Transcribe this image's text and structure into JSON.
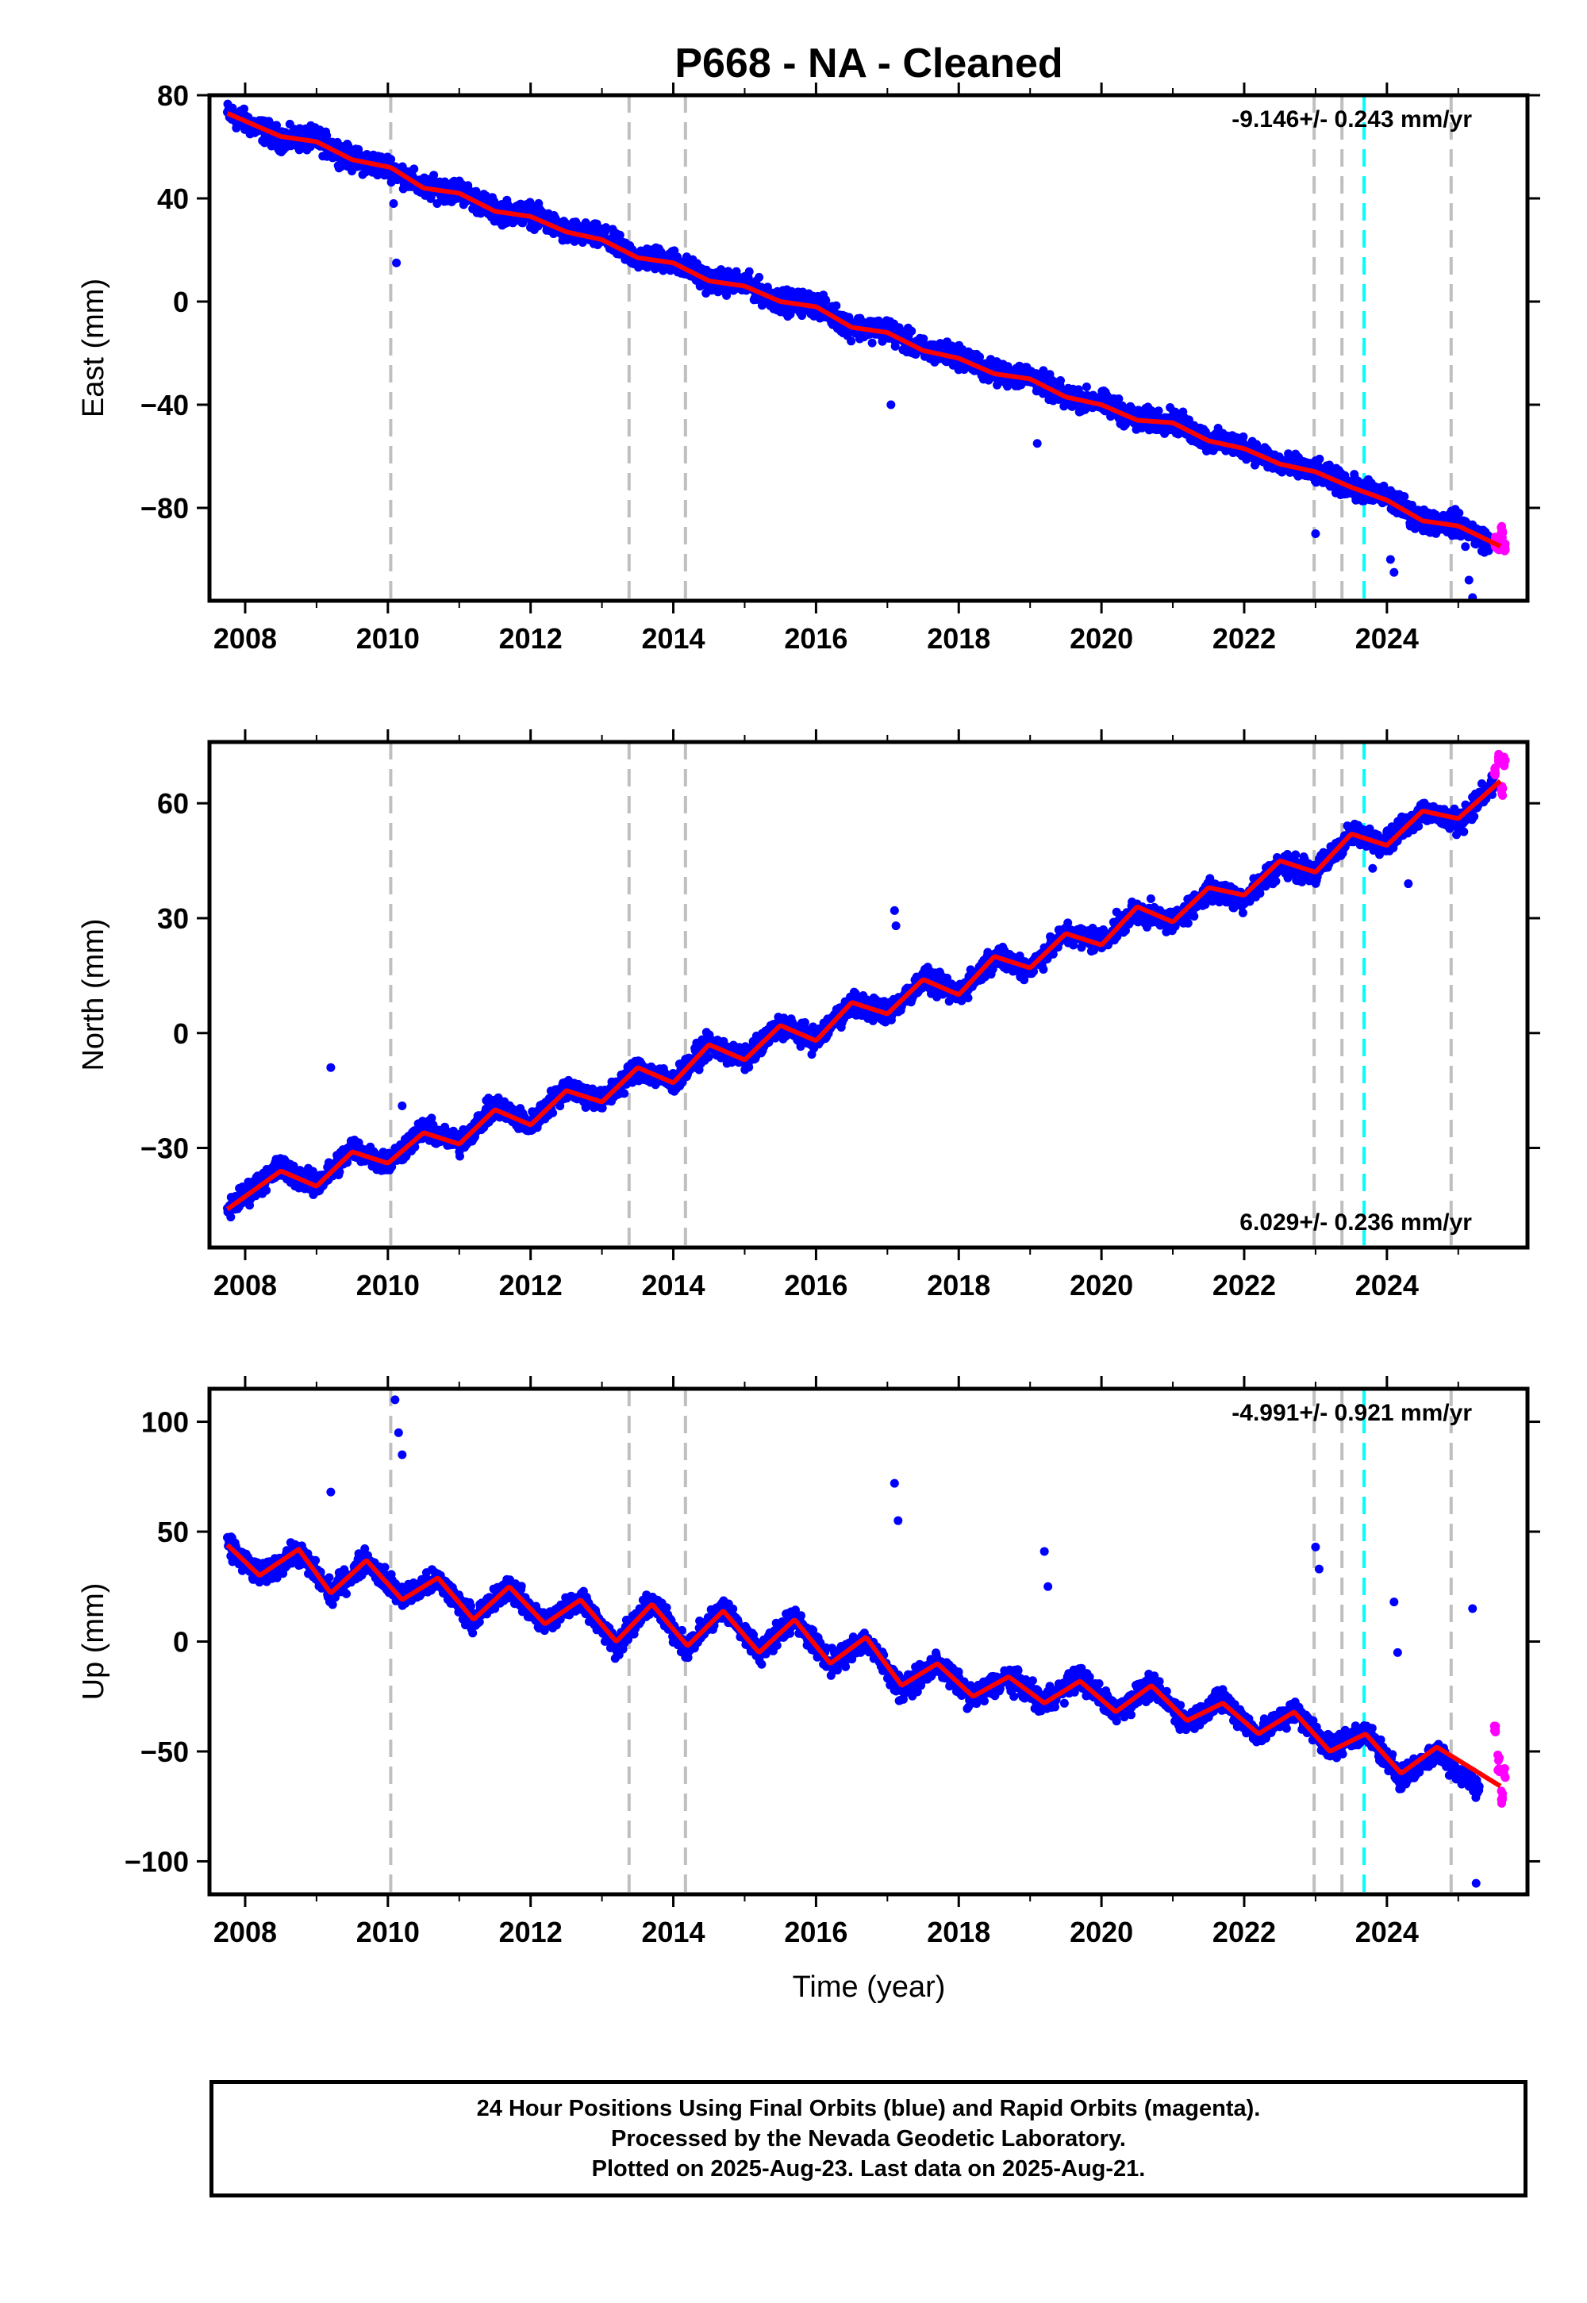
{
  "title": "P668  - NA - Cleaned",
  "xlabel": "Time (year)",
  "x_ticks": [
    "2008",
    "2010",
    "2012",
    "2014",
    "2016",
    "2018",
    "2020",
    "2022",
    "2024"
  ],
  "colors": {
    "final_orbits": "#0000ff",
    "rapid_orbits": "#ff00ff",
    "model_fit": "#ff0000",
    "event_line": "#bfbfbf",
    "equipment_line": "#00ffff"
  },
  "event_lines": [
    2010.04,
    2013.38,
    2014.17,
    2022.98,
    2023.37,
    2024.9
  ],
  "equipment_line": 2023.68,
  "caption": [
    "24 Hour Positions Using Final Orbits (blue) and Rapid Orbits (magenta).",
    "Processed by the Nevada Geodetic Laboratory.",
    "Plotted on 2025-Aug-23. Last data on 2025-Aug-21."
  ],
  "chart_data": [
    {
      "type": "scatter",
      "ylabel": "East (mm)",
      "rate_label": "-9.146+/- 0.243 mm/yr",
      "rate_position": "top-right",
      "xlim": [
        2007.5,
        2025.97
      ],
      "ylim": [
        -116,
        80
      ],
      "y_ticks": [
        80,
        40,
        0,
        -40,
        -80
      ],
      "y_tick_labels": [
        "80",
        "40",
        "0",
        "−40",
        "−80"
      ],
      "series": [
        {
          "name": "Final Orbits (blue)",
          "x": [
            2007.75,
            2008.5,
            2009.0,
            2009.5,
            2010.04,
            2010.5,
            2011.0,
            2011.5,
            2012.0,
            2012.5,
            2013.0,
            2013.5,
            2014.0,
            2014.5,
            2015.0,
            2015.5,
            2016.0,
            2016.5,
            2017.0,
            2017.5,
            2018.0,
            2018.5,
            2019.0,
            2019.5,
            2020.0,
            2020.5,
            2021.0,
            2021.5,
            2022.0,
            2022.5,
            2023.0,
            2023.5,
            2024.0,
            2024.5,
            2025.0,
            2025.45
          ],
          "y": [
            73,
            63,
            63,
            55,
            52,
            44,
            43,
            35,
            34,
            27,
            25,
            17,
            16,
            8,
            7,
            0,
            -1,
            -10,
            -11,
            -19,
            -21,
            -28,
            -29,
            -37,
            -39,
            -46,
            -46,
            -54,
            -56,
            -63,
            -66,
            -72,
            -76,
            -85,
            -86,
            -94
          ]
        },
        {
          "name": "Rapid Orbits (magenta)",
          "x": [
            2025.5,
            2025.55,
            2025.6,
            2025.63
          ],
          "y": [
            -92,
            -95,
            -90,
            -96
          ]
        },
        {
          "name": "Model Fit",
          "x": [
            2007.75,
            2008.5,
            2009.0,
            2009.5,
            2010.04,
            2010.5,
            2011.0,
            2011.5,
            2012.0,
            2012.5,
            2013.0,
            2013.5,
            2014.0,
            2014.5,
            2015.0,
            2015.5,
            2016.0,
            2016.5,
            2017.0,
            2017.5,
            2018.0,
            2018.5,
            2019.0,
            2019.5,
            2020.0,
            2020.5,
            2021.0,
            2021.5,
            2022.0,
            2022.5,
            2023.0,
            2023.5,
            2024.0,
            2024.5,
            2025.0,
            2025.6
          ],
          "y": [
            73,
            64,
            62,
            55,
            52,
            44,
            42,
            35,
            33,
            27,
            24,
            17,
            15,
            8,
            6,
            0,
            -2,
            -10,
            -12,
            -19,
            -22,
            -28,
            -30,
            -37,
            -40,
            -46,
            -47,
            -54,
            -57,
            -63,
            -66,
            -72,
            -77,
            -85,
            -87,
            -95
          ]
        }
      ],
      "outliers": {
        "x": [
          2010.08,
          2010.12,
          2017.05,
          2019.1,
          2023.0,
          2024.05,
          2024.1,
          2025.1,
          2025.15,
          2025.2
        ],
        "y": [
          38,
          15,
          -40,
          -55,
          -90,
          -100,
          -105,
          -95,
          -108,
          -115
        ]
      }
    },
    {
      "type": "scatter",
      "ylabel": "North (mm)",
      "rate_label": "6.029+/- 0.236 mm/yr",
      "rate_position": "bottom-right",
      "xlim": [
        2007.5,
        2025.97
      ],
      "ylim": [
        -56,
        76
      ],
      "y_ticks": [
        60,
        30,
        0,
        -30
      ],
      "y_tick_labels": [
        "60",
        "30",
        "0",
        "−30"
      ],
      "series": [
        {
          "name": "Final Orbits (blue)",
          "x": [
            2007.75,
            2008.5,
            2009.0,
            2009.5,
            2010.0,
            2010.5,
            2011.0,
            2011.5,
            2012.0,
            2012.5,
            2013.0,
            2013.5,
            2014.0,
            2014.5,
            2015.0,
            2015.5,
            2016.0,
            2016.5,
            2017.0,
            2017.5,
            2018.0,
            2018.5,
            2019.0,
            2019.5,
            2020.0,
            2020.5,
            2021.0,
            2021.5,
            2022.0,
            2022.5,
            2023.0,
            2023.5,
            2024.0,
            2024.5,
            2025.0,
            2025.5
          ],
          "y": [
            -46,
            -35,
            -40,
            -30,
            -34,
            -25,
            -29,
            -19,
            -24,
            -14,
            -18,
            -9,
            -13,
            -3,
            -7,
            2,
            -2,
            8,
            5,
            14,
            10,
            20,
            17,
            26,
            24,
            32,
            29,
            37,
            35,
            44,
            42,
            52,
            50,
            58,
            55,
            65
          ]
        },
        {
          "name": "Rapid Orbits (magenta)",
          "x": [
            2025.5,
            2025.55,
            2025.6,
            2025.63
          ],
          "y": [
            68,
            72,
            63,
            70
          ]
        },
        {
          "name": "Model Fit",
          "x": [
            2007.75,
            2008.5,
            2009.0,
            2009.5,
            2010.0,
            2010.5,
            2011.0,
            2011.5,
            2012.0,
            2012.5,
            2013.0,
            2013.5,
            2014.0,
            2014.5,
            2015.0,
            2015.5,
            2016.0,
            2016.5,
            2017.0,
            2017.5,
            2018.0,
            2018.5,
            2019.0,
            2019.5,
            2020.0,
            2020.5,
            2021.0,
            2021.5,
            2022.0,
            2022.5,
            2023.0,
            2023.5,
            2024.0,
            2024.5,
            2025.0,
            2025.6
          ],
          "y": [
            -46,
            -36,
            -40,
            -31,
            -34,
            -26,
            -29,
            -20,
            -24,
            -15,
            -18,
            -9,
            -13,
            -3,
            -7,
            2,
            -2,
            8,
            5,
            14,
            10,
            20,
            17,
            26,
            23,
            33,
            29,
            38,
            36,
            45,
            42,
            52,
            49,
            58,
            56,
            66
          ]
        }
      ],
      "outliers": {
        "x": [
          2009.2,
          2010.2,
          2017.1,
          2017.12,
          2023.8,
          2024.3
        ],
        "y": [
          -9,
          -19,
          32,
          28,
          43,
          39
        ]
      }
    },
    {
      "type": "scatter",
      "ylabel": "Up (mm)",
      "rate_label": "-4.991+/- 0.921 mm/yr",
      "rate_position": "top-right",
      "xlim": [
        2007.5,
        2025.97
      ],
      "ylim": [
        -115,
        115
      ],
      "y_ticks": [
        100,
        50,
        0,
        -50,
        -100
      ],
      "y_tick_labels": [
        "100",
        "50",
        "0",
        "−50",
        "−100"
      ],
      "series": [
        {
          "name": "Final Orbits (blue)",
          "x": [
            2007.75,
            2008.2,
            2008.75,
            2009.2,
            2009.7,
            2010.2,
            2010.7,
            2011.2,
            2011.7,
            2012.2,
            2012.7,
            2013.2,
            2013.7,
            2014.2,
            2014.7,
            2015.2,
            2015.7,
            2016.2,
            2016.7,
            2017.2,
            2017.7,
            2018.2,
            2018.7,
            2019.2,
            2019.7,
            2020.2,
            2020.7,
            2021.2,
            2021.7,
            2022.2,
            2022.7,
            2023.2,
            2023.7,
            2024.2,
            2024.7,
            2025.3
          ],
          "y": [
            44,
            30,
            41,
            22,
            37,
            20,
            28,
            10,
            25,
            8,
            20,
            -2,
            18,
            -3,
            16,
            -5,
            11,
            -10,
            1,
            -22,
            -10,
            -26,
            -16,
            -28,
            -16,
            -32,
            -20,
            -37,
            -26,
            -43,
            -31,
            -48,
            -41,
            -62,
            -50,
            -68
          ]
        },
        {
          "name": "Rapid Orbits (magenta)",
          "x": [
            2025.5,
            2025.55,
            2025.6,
            2025.63
          ],
          "y": [
            -40,
            -55,
            -70,
            -60
          ]
        },
        {
          "name": "Model Fit",
          "x": [
            2007.75,
            2008.2,
            2008.75,
            2009.2,
            2009.7,
            2010.2,
            2010.7,
            2011.2,
            2011.7,
            2012.2,
            2012.7,
            2013.2,
            2013.7,
            2014.2,
            2014.7,
            2015.2,
            2015.7,
            2016.2,
            2016.7,
            2017.2,
            2017.7,
            2018.2,
            2018.7,
            2019.2,
            2019.7,
            2020.2,
            2020.7,
            2021.2,
            2021.7,
            2022.2,
            2022.7,
            2023.2,
            2023.7,
            2024.2,
            2024.7,
            2025.6
          ],
          "y": [
            44,
            30,
            42,
            22,
            37,
            19,
            29,
            10,
            25,
            8,
            19,
            0,
            17,
            -2,
            14,
            -5,
            10,
            -10,
            2,
            -20,
            -10,
            -25,
            -16,
            -28,
            -18,
            -32,
            -20,
            -36,
            -28,
            -42,
            -32,
            -50,
            -42,
            -60,
            -48,
            -66
          ]
        }
      ],
      "outliers": {
        "x": [
          2009.2,
          2010.1,
          2010.15,
          2010.2,
          2017.1,
          2017.15,
          2019.2,
          2019.25,
          2023.0,
          2023.05,
          2024.1,
          2024.15,
          2025.2,
          2025.25
        ],
        "y": [
          68,
          110,
          95,
          85,
          72,
          55,
          41,
          25,
          43,
          33,
          18,
          -5,
          15,
          -110
        ]
      }
    }
  ]
}
